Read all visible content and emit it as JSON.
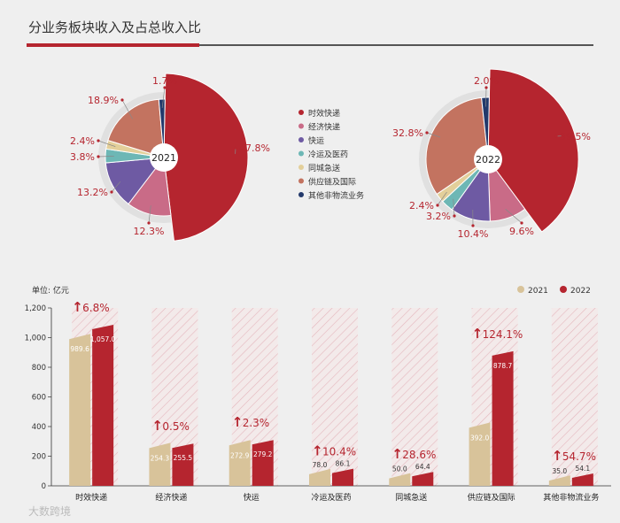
{
  "title": "分业务板块收入及占总收入比",
  "colors": {
    "red": "#b5252f",
    "gold": "#d8c39a",
    "grey": "#e2e2e2",
    "hatch": "#e8b8be",
    "text_red": "#b5252f"
  },
  "legend_pie": [
    {
      "name": "时效快递",
      "color": "#b5252f"
    },
    {
      "name": "经济快递",
      "color": "#c96b87"
    },
    {
      "name": "快运",
      "color": "#6e5aa3"
    },
    {
      "name": "冷运及医药",
      "color": "#6db7b5"
    },
    {
      "name": "同城急送",
      "color": "#e3cf9a"
    },
    {
      "name": "供应链及国际",
      "color": "#c37360"
    },
    {
      "name": "其他非物流业务",
      "color": "#23396b"
    }
  ],
  "chart_data": [
    {
      "type": "pie",
      "title": "2021",
      "labels": [
        "时效快递",
        "经济快递",
        "快运",
        "冷运及医药",
        "同城急送",
        "供应链及国际",
        "其他非物流业务"
      ],
      "values": [
        47.8,
        12.3,
        13.2,
        3.8,
        2.4,
        18.9,
        1.7
      ],
      "value_labels": [
        "47.8%",
        "12.3%",
        "13.2%",
        "3.8%",
        "2.4%",
        "18.9%",
        "1.7%"
      ]
    },
    {
      "type": "pie",
      "title": "2022",
      "labels": [
        "时效快递",
        "经济快递",
        "快运",
        "冷运及医药",
        "同城急送",
        "供应链及国际",
        "其他非物流业务"
      ],
      "values": [
        39.5,
        9.6,
        10.4,
        3.2,
        2.4,
        32.8,
        2.0
      ],
      "value_labels": [
        "39.5%",
        "9.6%",
        "10.4%",
        "3.2%",
        "2.4%",
        "32.8%",
        "2.0%"
      ]
    },
    {
      "type": "bar",
      "unit_label": "单位: 亿元",
      "categories": [
        "时效快递",
        "经济快递",
        "快运",
        "冷运及医药",
        "同城急送",
        "供应链及国际",
        "其他非物流业务"
      ],
      "series": [
        {
          "name": "2021",
          "values": [
            989.6,
            254.3,
            272.9,
            78.0,
            50.0,
            392.0,
            35.0
          ],
          "labels": [
            "989.6",
            "254.3",
            "272.9",
            "78.0",
            "50.0",
            "392.0",
            "35.0"
          ]
        },
        {
          "name": "2022",
          "values": [
            1057.0,
            255.5,
            279.2,
            86.1,
            64.4,
            878.7,
            54.1
          ],
          "labels": [
            "1,057.0",
            "255.5",
            "279.2",
            "86.1",
            "64.4",
            "878.7",
            "54.1"
          ]
        }
      ],
      "growth_labels": [
        "6.8%",
        "0.5%",
        "2.3%",
        "10.4%",
        "28.6%",
        "124.1%",
        "54.7%"
      ],
      "ylim": [
        0,
        1200
      ],
      "yticks": [
        0,
        200,
        400,
        600,
        800,
        1000,
        1200
      ],
      "ytick_labels": [
        "0",
        "200",
        "400",
        "600",
        "800",
        "1,000",
        "1,200"
      ]
    }
  ],
  "watermark": "大数跨境"
}
